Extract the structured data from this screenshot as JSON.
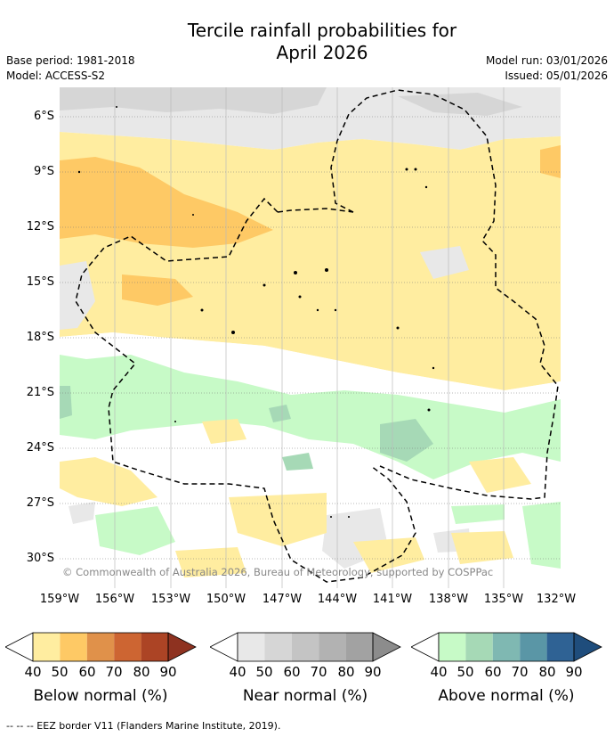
{
  "title_line1": "Tercile rainfall probabilities for",
  "title_line2": "April 2026",
  "meta": {
    "base_period": "Base period: 1981-2018",
    "model": "Model: ACCESS-S2",
    "model_run": "Model run: 03/01/2026",
    "issued": "Issued: 05/01/2026"
  },
  "map": {
    "copyright": "© Commonwealth of Australia 2026, Bureau of Meteorology, supported by COSPPac",
    "lat_labels": [
      "6°S",
      "9°S",
      "12°S",
      "15°S",
      "18°S",
      "21°S",
      "24°S",
      "27°S",
      "30°S"
    ],
    "lon_labels": [
      "159°W",
      "156°W",
      "153°W",
      "150°W",
      "147°W",
      "144°W",
      "141°W",
      "138°W",
      "135°W",
      "132°W"
    ]
  },
  "colorbars": [
    {
      "name": "Below normal (%)",
      "ticks": [
        "40",
        "50",
        "60",
        "70",
        "80",
        "90"
      ],
      "colors": [
        "#ffffff",
        "#ffeda0",
        "#fec965",
        "#e0914a",
        "#cd6532",
        "#ac4425",
        "#8e3220"
      ]
    },
    {
      "name": "Near normal (%)",
      "ticks": [
        "40",
        "50",
        "60",
        "70",
        "80",
        "90"
      ],
      "colors": [
        "#ffffff",
        "#e8e8e8",
        "#d6d6d6",
        "#c4c4c4",
        "#b2b2b2",
        "#a2a2a2",
        "#8c8c8c"
      ]
    },
    {
      "name": "Above normal (%)",
      "ticks": [
        "40",
        "50",
        "60",
        "70",
        "80",
        "90"
      ],
      "colors": [
        "#ffffff",
        "#c7fac7",
        "#a6d9b6",
        "#7fb8b2",
        "#5a96a6",
        "#2f6294",
        "#1f4d7c"
      ]
    }
  ],
  "footer": "--  --  -- EEZ border V11 (Flanders Marine Institute, 2019)."
}
